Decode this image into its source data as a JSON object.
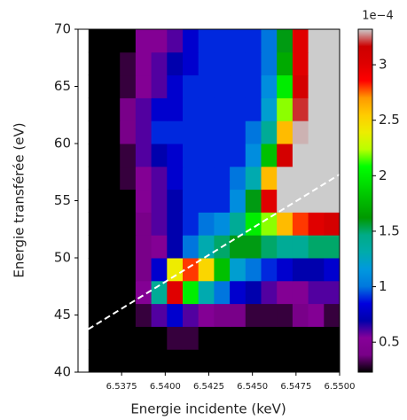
{
  "chart_data": {
    "type": "heatmap",
    "x_label": "Energie incidente (keV)",
    "y_label": "Energie transférée (eV)",
    "xlim": [
      6.535,
      6.55
    ],
    "ylim": [
      40,
      70
    ],
    "xticks": [
      6.5375,
      {
        "value": 6.54,
        "label": "6.5400"
      },
      6.5425,
      {
        "value": 6.545,
        "label": "6.5450"
      },
      6.5475,
      {
        "value": 6.55,
        "label": "6.5500"
      }
    ],
    "yticks": [
      40,
      45,
      50,
      55,
      60,
      65,
      70
    ],
    "xbins": [
      6.5356,
      6.5365,
      6.5374,
      6.5383,
      6.5392,
      6.5401,
      6.541,
      6.5419,
      6.5428,
      6.5437,
      6.5446,
      6.5455,
      6.5464,
      6.5473,
      6.5482,
      6.5491,
      6.55
    ],
    "ybins": [
      40,
      42,
      44,
      46,
      48,
      50,
      52,
      54,
      56,
      58,
      60,
      62,
      64,
      66,
      68,
      70
    ],
    "z": [
      [
        0.1,
        0.1,
        0.1,
        0.1,
        0.1,
        0.1,
        0.1,
        0.1,
        0.1,
        0.1,
        0.1,
        0.1,
        0.1,
        0.1,
        0.1,
        0.1
      ],
      [
        0.1,
        0.1,
        0.1,
        0.1,
        0.2,
        0.3,
        0.3,
        0.2,
        0.2,
        0.2,
        0.2,
        0.2,
        0.2,
        0.2,
        0.2,
        0.2
      ],
      [
        0.1,
        0.1,
        0.1,
        0.3,
        0.6,
        0.8,
        0.6,
        0.5,
        0.4,
        0.4,
        0.3,
        0.3,
        0.3,
        0.4,
        0.5,
        0.3
      ],
      [
        0.1,
        0.1,
        0.2,
        0.5,
        1.4,
        3.0,
        2.0,
        1.3,
        1.0,
        0.8,
        0.7,
        0.6,
        0.5,
        0.5,
        0.6,
        0.6
      ],
      [
        0.1,
        0.1,
        0.2,
        0.4,
        0.8,
        2.4,
        2.8,
        2.5,
        1.8,
        1.2,
        1.0,
        0.9,
        0.8,
        0.7,
        0.7,
        0.8
      ],
      [
        0.1,
        0.1,
        0.2,
        0.4,
        0.5,
        0.7,
        1.0,
        1.3,
        1.5,
        1.6,
        1.6,
        1.5,
        1.4,
        1.4,
        1.5,
        1.5
      ],
      [
        0.1,
        0.1,
        0.2,
        0.4,
        0.6,
        0.7,
        0.9,
        1.0,
        1.1,
        1.4,
        2.0,
        2.2,
        2.6,
        2.8,
        3.0,
        3.1
      ],
      [
        0.1,
        0.1,
        0.2,
        0.5,
        0.6,
        0.7,
        0.9,
        0.9,
        0.9,
        1.1,
        1.6,
        3.0,
        3.4,
        3.4,
        3.4,
        3.4
      ],
      [
        0.1,
        0.1,
        0.3,
        0.5,
        0.6,
        0.8,
        0.9,
        0.9,
        0.9,
        1.0,
        1.3,
        2.6,
        3.4,
        3.4,
        3.4,
        3.4
      ],
      [
        0.1,
        0.1,
        0.3,
        0.6,
        0.7,
        0.8,
        0.9,
        0.9,
        0.9,
        0.9,
        1.1,
        1.8,
        3.1,
        3.4,
        3.4,
        3.4
      ],
      [
        0.1,
        0.1,
        0.4,
        0.6,
        0.9,
        0.9,
        0.9,
        0.9,
        0.9,
        0.9,
        1.0,
        1.4,
        2.6,
        3.3,
        3.4,
        3.4
      ],
      [
        0.1,
        0.1,
        0.4,
        0.6,
        0.8,
        0.8,
        0.9,
        0.9,
        0.9,
        0.9,
        0.9,
        1.2,
        2.2,
        3.2,
        3.4,
        3.4
      ],
      [
        0.1,
        0.1,
        0.3,
        0.5,
        0.6,
        0.8,
        0.9,
        0.9,
        0.9,
        0.9,
        0.9,
        1.1,
        2.0,
        3.1,
        3.4,
        3.4
      ],
      [
        0.1,
        0.1,
        0.3,
        0.5,
        0.6,
        0.7,
        0.8,
        0.9,
        0.9,
        0.9,
        0.9,
        1.0,
        1.7,
        3.0,
        3.4,
        3.4
      ],
      [
        0.1,
        0.1,
        0.2,
        0.5,
        0.5,
        0.6,
        0.8,
        0.9,
        0.9,
        0.9,
        0.9,
        1.0,
        1.6,
        3.0,
        3.4,
        3.4
      ]
    ],
    "colormap": "nipy_spectral",
    "clim": [
      0.23,
      3.32
    ],
    "colorbar_ticks": [
      0.5,
      1.0,
      1.5,
      2.0,
      2.5,
      3.0
    ],
    "colorbar_offset": "1e−4",
    "lines": [
      {
        "x": [
          6.5351,
          6.55
        ],
        "y": [
          43.3,
          57.3
        ],
        "color": "#ffffff",
        "style": "dashed"
      }
    ]
  }
}
